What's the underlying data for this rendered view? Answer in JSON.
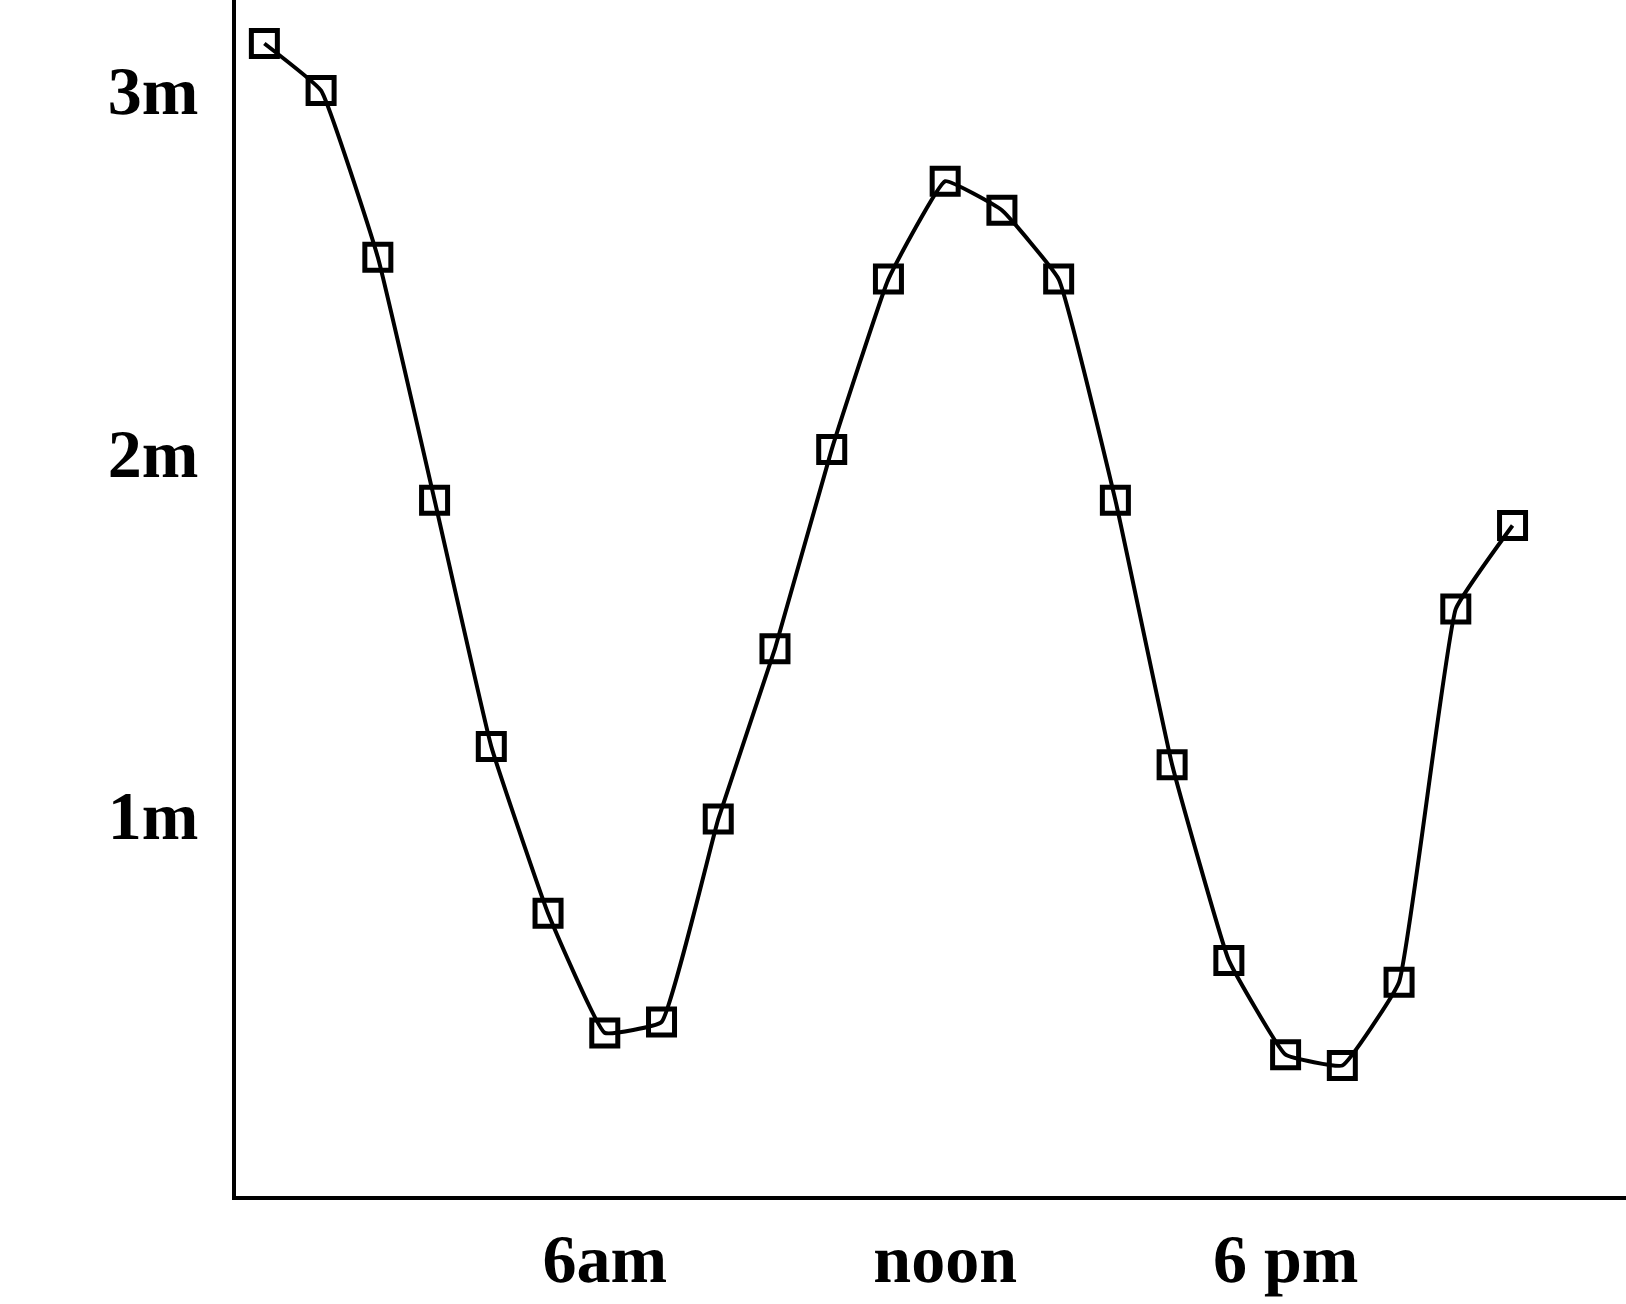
{
  "chart_data": {
    "type": "line",
    "categories": [
      null,
      null,
      null,
      null,
      null,
      null,
      "6am",
      null,
      null,
      null,
      null,
      null,
      "noon",
      null,
      null,
      null,
      null,
      null,
      "6 pm",
      null,
      null,
      null,
      null
    ],
    "series": [
      {
        "color": "#000000",
        "values": [
          3.13,
          3.0,
          2.54,
          1.87,
          1.19,
          0.73,
          0.4,
          0.43,
          0.99,
          1.46,
          2.01,
          2.48,
          2.75,
          2.67,
          2.48,
          1.87,
          1.14,
          0.6,
          0.34,
          0.31,
          0.54,
          1.57,
          1.8
        ]
      }
    ],
    "ylim": [
      -0.05,
      3.25
    ],
    "yticks": [
      {
        "value": 1,
        "label": "1m"
      },
      {
        "value": 2,
        "label": "2m"
      },
      {
        "value": 3,
        "label": "3m"
      }
    ],
    "grid": false,
    "legend": false,
    "marker": "square",
    "line_style": "solid"
  }
}
